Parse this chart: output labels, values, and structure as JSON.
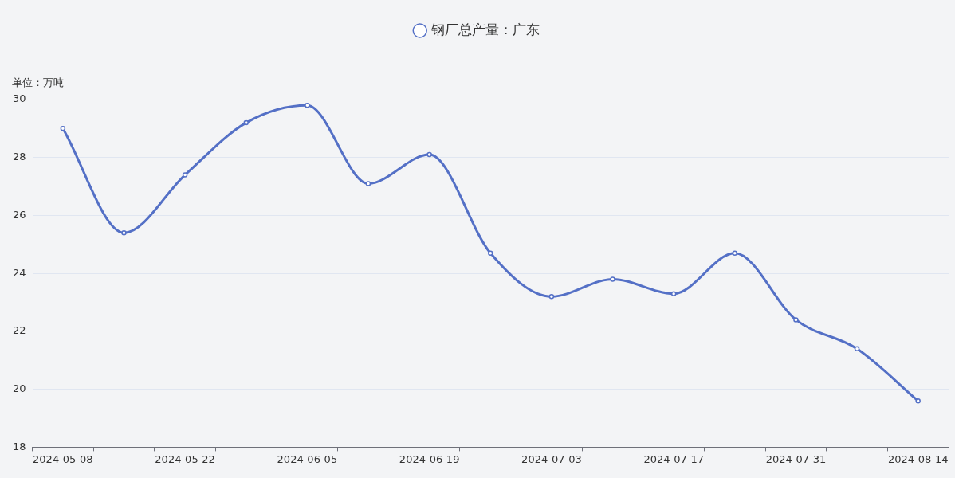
{
  "chart_data": {
    "type": "line",
    "ylabel": "单位：万吨",
    "categories": [
      "2024-05-08",
      null,
      "2024-05-22",
      null,
      "2024-06-05",
      null,
      "2024-06-19",
      null,
      "2024-07-03",
      null,
      "2024-07-17",
      null,
      "2024-07-31",
      null,
      "2024-08-14"
    ],
    "series": [
      {
        "name": "钢厂总产量：广东",
        "color": "#5470c6",
        "values": [
          29.0,
          25.4,
          27.4,
          29.2,
          29.8,
          27.1,
          28.1,
          24.7,
          23.2,
          23.8,
          23.3,
          24.7,
          22.4,
          21.4,
          19.6
        ]
      }
    ],
    "ylim": [
      18,
      30
    ],
    "yticks": [
      18,
      20,
      22,
      24,
      26,
      28,
      30
    ],
    "grid": "y",
    "legend": "top",
    "marker": "circle"
  }
}
